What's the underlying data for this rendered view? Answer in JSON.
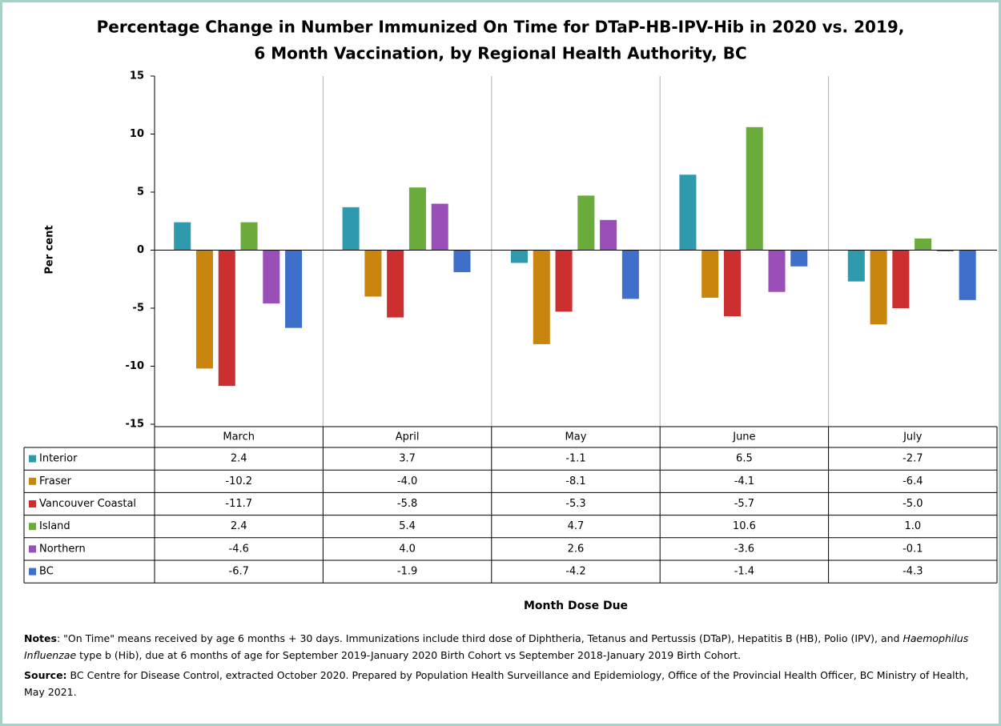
{
  "chart_data": {
    "type": "bar",
    "title": [
      "Percentage Change in Number Immunized On Time for DTaP-HB-IPV-Hib  in 2020 vs. 2019,",
      "6 Month Vaccination,  by Regional Health Authority,  BC"
    ],
    "y_label": "Per cent",
    "x_label": "Month Dose Due",
    "categories": [
      "March",
      "April",
      "May",
      "June",
      "July"
    ],
    "ylim": [
      -15,
      15
    ],
    "yticks": [
      -15,
      -10,
      -5,
      0,
      5,
      10,
      15
    ],
    "grid": true,
    "series": [
      {
        "name": "Interior",
        "color": "#2f9aad",
        "values": [
          2.4,
          3.7,
          -1.1,
          6.5,
          -2.7
        ],
        "value_labels": [
          "2.4",
          "3.7",
          "-1.1",
          "6.5",
          "-2.7"
        ]
      },
      {
        "name": "Fraser",
        "color": "#c9860f",
        "values": [
          -10.2,
          -4,
          -8.1,
          -4.1,
          -6.4
        ],
        "value_labels": [
          "-10.2",
          "-4.0",
          "-8.1",
          "-4.1",
          "-6.4"
        ]
      },
      {
        "name": "Vancouver Coastal",
        "color": "#cc2f2f",
        "values": [
          -11.7,
          -5.8,
          -5.3,
          -5.7,
          -5
        ],
        "value_labels": [
          "-11.7",
          "-5.8",
          "-5.3",
          "-5.7",
          "-5.0"
        ]
      },
      {
        "name": "Island",
        "color": "#6aab3b",
        "values": [
          2.4,
          5.4,
          4.7,
          10.6,
          1
        ],
        "value_labels": [
          "2.4",
          "5.4",
          "4.7",
          "10.6",
          "1.0"
        ]
      },
      {
        "name": "Northern",
        "color": "#9a4fb8",
        "values": [
          -4.6,
          4,
          2.6,
          -3.6,
          -0.1
        ],
        "value_labels": [
          "-4.6",
          "4.0",
          "2.6",
          "-3.6",
          "-0.1"
        ]
      },
      {
        "name": "BC",
        "color": "#3f70c9",
        "values": [
          -6.7,
          -1.9,
          -4.2,
          -1.4,
          -4.3
        ],
        "value_labels": [
          "-6.7",
          "-1.9",
          "-4.2",
          "-1.4",
          "-4.3"
        ]
      }
    ],
    "notes": {
      "label": "Notes",
      "text1": ": \"On Time\"  means received by age 6 months + 30 days. Immunizations include third dose of Diphtheria, Tetanus and Pertussis (DTaP), Hepatitis B (HB),  Polio (IPV), and ",
      "italic": "Haemophilus Influenzae",
      "text2": " type  b (Hib), due at 6 months of age for September  2019-January 2020 Birth Cohort vs September  2018-January 2019 Birth Cohort."
    },
    "source": {
      "label": "Source:",
      "text": " BC Centre for Disease Control, extracted October 2020. Prepared by Population Health Surveillance and Epidemiology, Office of the Provincial Health Officer, BC Ministry of Health, May 2021."
    }
  }
}
